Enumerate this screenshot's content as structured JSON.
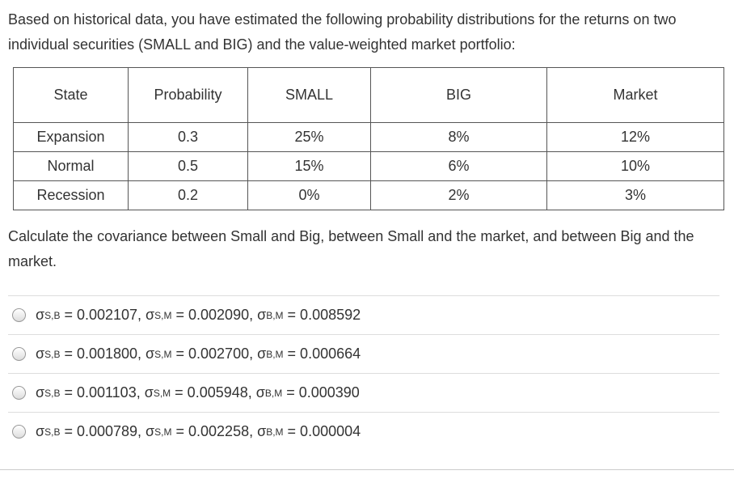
{
  "question": {
    "intro": "Based on historical data, you have estimated the following probability distributions for the returns on two individual securities (SMALL and BIG) and the value-weighted market portfolio:",
    "prompt": "Calculate the covariance between Small and Big, between Small and the market, and between Big and the market."
  },
  "table": {
    "header": [
      "State",
      "Probability",
      "SMALL",
      "BIG",
      "Market"
    ],
    "rows": [
      [
        "Expansion",
        "0.3",
        "25%",
        "8%",
        "12%"
      ],
      [
        "Normal",
        "0.5",
        "15%",
        "6%",
        "10%"
      ],
      [
        "Recession",
        "0.2",
        "0%",
        "2%",
        "3%"
      ]
    ]
  },
  "options": [
    [
      {
        "symbol": "σ",
        "sub": "S,B",
        "text": " = 0.002107, "
      },
      {
        "symbol": "σ",
        "sub": "S,M",
        "text": " = 0.002090, "
      },
      {
        "symbol": "σ",
        "sub": "B,M",
        "text": " = 0.008592"
      }
    ],
    [
      {
        "symbol": "σ",
        "sub": "S,B",
        "text": " = 0.001800, "
      },
      {
        "symbol": "σ",
        "sub": "S,M",
        "text": " = 0.002700, "
      },
      {
        "symbol": "σ",
        "sub": "B,M",
        "text": " = 0.000664"
      }
    ],
    [
      {
        "symbol": "σ",
        "sub": "S,B",
        "text": " = 0.001103, "
      },
      {
        "symbol": "σ",
        "sub": "S,M",
        "text": " = 0.005948, "
      },
      {
        "symbol": "σ",
        "sub": "B,M",
        "text": " = 0.000390"
      }
    ],
    [
      {
        "symbol": "σ",
        "sub": "S,B",
        "text": " = 0.000789, "
      },
      {
        "symbol": "σ",
        "sub": "S,M",
        "text": " = 0.002258, "
      },
      {
        "symbol": "σ",
        "sub": "B,M",
        "text": " = 0.000004"
      }
    ]
  ]
}
